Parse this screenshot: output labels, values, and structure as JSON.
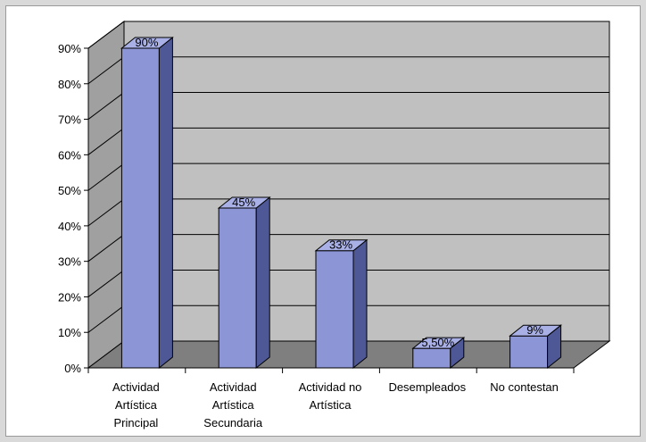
{
  "chart_data": {
    "type": "bar",
    "categories": [
      [
        "Actividad",
        "Artística",
        "Principal"
      ],
      [
        "Actividad",
        "Artística",
        "Secundaria"
      ],
      [
        "Actividad no",
        "Artística"
      ],
      [
        "Desempleados"
      ],
      [
        "No contestan"
      ]
    ],
    "values": [
      90,
      45,
      33,
      5.5,
      9
    ],
    "data_labels": [
      "90%",
      "45%",
      "33%",
      "5,50%",
      "9%"
    ],
    "yticks": [
      "0%",
      "10%",
      "20%",
      "30%",
      "40%",
      "50%",
      "60%",
      "70%",
      "80%",
      "90%"
    ],
    "ylim": [
      0,
      90
    ],
    "grid": true,
    "style": "3d",
    "colors": {
      "bar_front": "#8c96d6",
      "bar_side": "#4e5896",
      "bar_top": "#a8b0e6",
      "back_wall": "#c0c0c0",
      "floor": "#7f7f7f",
      "side_wall": "#a0a0a0"
    }
  }
}
